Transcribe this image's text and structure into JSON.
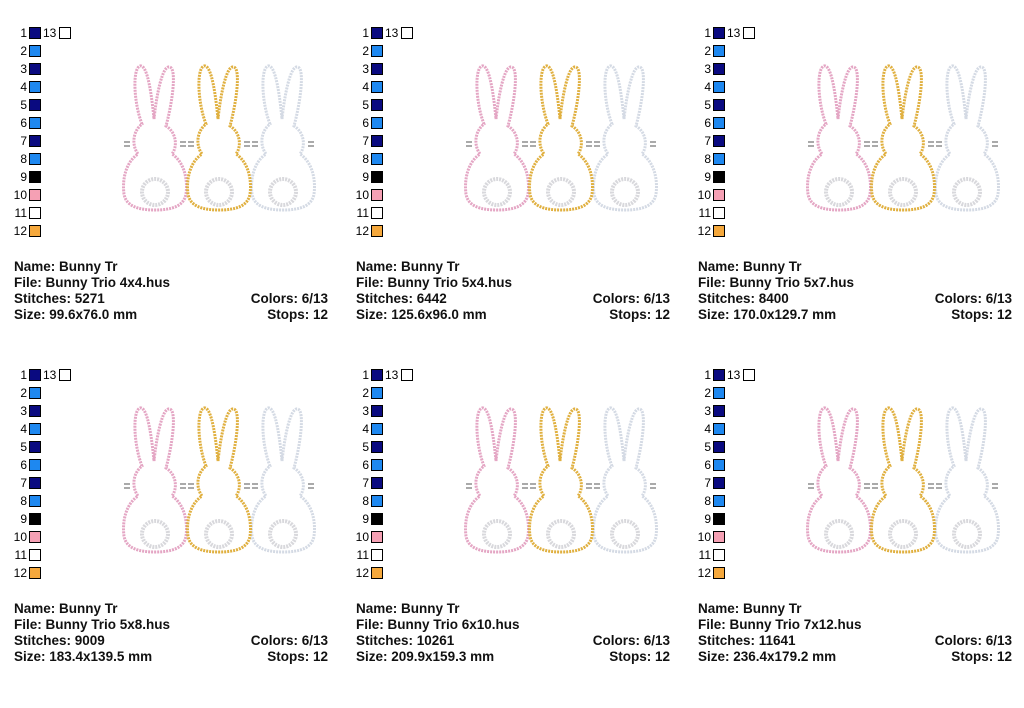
{
  "palette": [
    {
      "num": "1",
      "color": "#0a0a80"
    },
    {
      "num": "2",
      "color": "#1e88f0"
    },
    {
      "num": "3",
      "color": "#0a0a80"
    },
    {
      "num": "4",
      "color": "#1e88f0"
    },
    {
      "num": "5",
      "color": "#0a0a80"
    },
    {
      "num": "6",
      "color": "#1e88f0"
    },
    {
      "num": "7",
      "color": "#0a0a80"
    },
    {
      "num": "8",
      "color": "#1e88f0"
    },
    {
      "num": "9",
      "color": "#000000"
    },
    {
      "num": "10",
      "color": "#f5a0b4"
    },
    {
      "num": "11",
      "color": "#ffffff"
    },
    {
      "num": "12",
      "color": "#f5a83c"
    }
  ],
  "extra_swatch": {
    "num": "13",
    "color": "#ffffff"
  },
  "bunny_colors": {
    "left": "#e4a6c4",
    "middle": "#e0b040",
    "right": "#d4dae4",
    "tail": "#d8d8dc"
  },
  "designs": [
    {
      "name": "Name: Bunny Tr",
      "file": "File: Bunny Trio 4x4.hus",
      "stitches": "Stitches: 5271",
      "colors": "Colors: 6/13",
      "size": "Size: 99.6x76.0 mm",
      "stops": "Stops: 12"
    },
    {
      "name": "Name: Bunny Tr",
      "file": "File: Bunny Trio 5x4.hus",
      "stitches": "Stitches: 6442",
      "colors": "Colors: 6/13",
      "size": "Size: 125.6x96.0 mm",
      "stops": "Stops: 12"
    },
    {
      "name": "Name: Bunny Tr",
      "file": "File: Bunny Trio 5x7.hus",
      "stitches": "Stitches: 8400",
      "colors": "Colors: 6/13",
      "size": "Size: 170.0x129.7 mm",
      "stops": "Stops: 12"
    },
    {
      "name": "Name: Bunny Tr",
      "file": "File: Bunny Trio 5x8.hus",
      "stitches": "Stitches: 9009",
      "colors": "Colors: 6/13",
      "size": "Size: 183.4x139.5 mm",
      "stops": "Stops: 12"
    },
    {
      "name": "Name: Bunny Tr",
      "file": "File: Bunny Trio 6x10.hus",
      "stitches": "Stitches: 10261",
      "colors": "Colors: 6/13",
      "size": "Size: 209.9x159.3 mm",
      "stops": "Stops: 12"
    },
    {
      "name": "Name: Bunny Tr",
      "file": "File: Bunny Trio 7x12.hus",
      "stitches": "Stitches: 11641",
      "colors": "Colors: 6/13",
      "size": "Size: 236.4x179.2 mm",
      "stops": "Stops: 12"
    }
  ]
}
